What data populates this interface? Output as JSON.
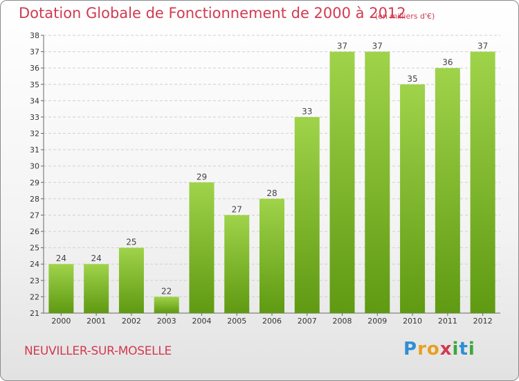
{
  "header": {
    "title": "Dotation Globale de Fonctionnement de 2000 à 2012",
    "unit_note": "(en milliers d'€)"
  },
  "footer": {
    "commune": "NEUVILLER-SUR-MOSELLE",
    "logo_letters": [
      "P",
      "r",
      "o",
      "x",
      "i",
      "t",
      "i"
    ],
    "logo_colors": [
      "#2e8fd6",
      "#e8a020",
      "#e8a020",
      "#d23a50",
      "#3aa83a",
      "#2e8fd6",
      "#3aa83a"
    ]
  },
  "colors": {
    "bar_top": "#9fd34a",
    "bar_bottom": "#5f9a12",
    "text": "#d23a50",
    "grid": "#d0d0d0"
  },
  "chart_data": {
    "type": "bar",
    "title": "Dotation Globale de Fonctionnement de 2000 à 2012",
    "subtitle": "(en milliers d'€)",
    "categories": [
      "2000",
      "2001",
      "2002",
      "2003",
      "2004",
      "2005",
      "2006",
      "2007",
      "2008",
      "2009",
      "2010",
      "2011",
      "2012"
    ],
    "values": [
      24,
      24,
      25,
      22,
      29,
      27,
      28,
      33,
      37,
      37,
      35,
      36,
      37
    ],
    "ylim": [
      21,
      38
    ],
    "yticks": [
      21,
      22,
      23,
      24,
      25,
      26,
      27,
      28,
      29,
      30,
      31,
      32,
      33,
      34,
      35,
      36,
      37,
      38
    ],
    "grid": true,
    "legend": "none"
  }
}
